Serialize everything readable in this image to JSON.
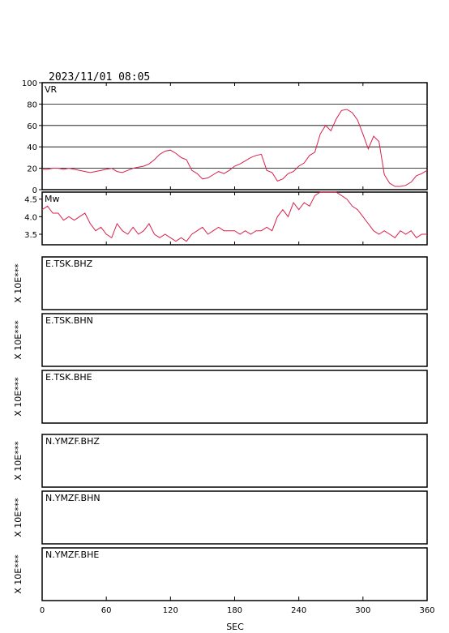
{
  "header": {
    "timestamp": "2023/11/01 08:05"
  },
  "colors": {
    "trace": "#d8204a",
    "frame": "#000000"
  },
  "chart_data": [
    {
      "type": "line",
      "panel_label": "VR",
      "ylim": [
        0,
        100
      ],
      "yticks": [
        "0",
        "20",
        "40",
        "60",
        "80",
        "100"
      ],
      "grid": true,
      "x": [
        0,
        5,
        10,
        15,
        20,
        25,
        30,
        35,
        40,
        45,
        50,
        55,
        60,
        65,
        70,
        75,
        80,
        85,
        90,
        95,
        100,
        105,
        110,
        115,
        120,
        125,
        130,
        135,
        140,
        145,
        150,
        155,
        160,
        165,
        170,
        175,
        180,
        185,
        190,
        195,
        200,
        205,
        210,
        215,
        220,
        225,
        230,
        235,
        240,
        245,
        250,
        255,
        260,
        265,
        270,
        275,
        280,
        285,
        290,
        295,
        300,
        305,
        310,
        315,
        320,
        325,
        330,
        335,
        340,
        345,
        350,
        355,
        360
      ],
      "y": [
        19,
        19,
        20,
        20,
        19,
        20,
        19,
        18,
        17,
        16,
        17,
        18,
        19,
        20,
        17,
        16,
        18,
        20,
        21,
        22,
        24,
        28,
        33,
        36,
        37,
        34,
        30,
        28,
        18,
        15,
        10,
        11,
        14,
        17,
        15,
        18,
        22,
        24,
        27,
        30,
        32,
        33,
        18,
        16,
        8,
        10,
        15,
        17,
        22,
        25,
        32,
        35,
        52,
        60,
        55,
        66,
        74,
        75,
        72,
        65,
        52,
        38,
        50,
        45,
        14,
        6,
        3,
        3,
        4,
        7,
        13,
        15,
        18
      ]
    },
    {
      "type": "line",
      "panel_label": "Mw",
      "ylim": [
        3.2,
        4.7
      ],
      "yticks": [
        "3.5",
        "4.0",
        "4.5"
      ],
      "grid": false,
      "x": [
        0,
        5,
        10,
        15,
        20,
        25,
        30,
        35,
        40,
        45,
        50,
        55,
        60,
        65,
        70,
        75,
        80,
        85,
        90,
        95,
        100,
        105,
        110,
        115,
        120,
        125,
        130,
        135,
        140,
        145,
        150,
        155,
        160,
        165,
        170,
        175,
        180,
        185,
        190,
        195,
        200,
        205,
        210,
        215,
        220,
        225,
        230,
        235,
        240,
        245,
        250,
        255,
        260,
        265,
        270,
        275,
        280,
        285,
        290,
        295,
        300,
        305,
        310,
        315,
        320,
        325,
        330,
        335,
        340,
        345,
        350,
        355,
        360
      ],
      "y": [
        4.2,
        4.3,
        4.1,
        4.1,
        3.9,
        4.0,
        3.9,
        4.0,
        4.1,
        3.8,
        3.6,
        3.7,
        3.5,
        3.4,
        3.8,
        3.6,
        3.5,
        3.7,
        3.5,
        3.6,
        3.8,
        3.5,
        3.4,
        3.5,
        3.4,
        3.3,
        3.4,
        3.3,
        3.5,
        3.6,
        3.7,
        3.5,
        3.6,
        3.7,
        3.6,
        3.6,
        3.6,
        3.5,
        3.6,
        3.5,
        3.6,
        3.6,
        3.7,
        3.6,
        4.0,
        4.2,
        4.0,
        4.4,
        4.2,
        4.4,
        4.3,
        4.6,
        4.9,
        4.8,
        4.7,
        4.8,
        4.6,
        4.5,
        4.3,
        4.2,
        4.0,
        3.8,
        3.6,
        3.5,
        3.6,
        3.5,
        3.4,
        3.6,
        3.5,
        3.6,
        3.4,
        3.5,
        3.5
      ]
    }
  ],
  "stations": [
    {
      "label": "E.TSK.BHZ",
      "unit": "X 10E***"
    },
    {
      "label": "E.TSK.BHN",
      "unit": "X 10E***"
    },
    {
      "label": "E.TSK.BHE",
      "unit": "X 10E***"
    },
    {
      "label": "N.YMZF.BHZ",
      "unit": "X 10E***"
    },
    {
      "label": "N.YMZF.BHN",
      "unit": "X 10E***"
    },
    {
      "label": "N.YMZF.BHE",
      "unit": "X 10E***"
    }
  ],
  "x_axis": {
    "label": "SEC",
    "ticks": [
      "0",
      "60",
      "120",
      "180",
      "240",
      "300",
      "360"
    ],
    "range": [
      0,
      360
    ]
  }
}
